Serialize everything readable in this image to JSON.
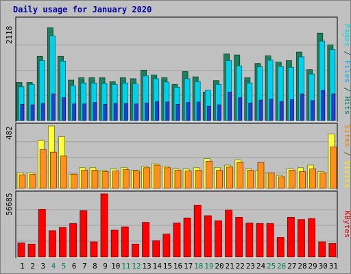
{
  "chart_data": {
    "type": "bar",
    "title": "Daily usage for January 2020",
    "categories": [
      "1",
      "2",
      "3",
      "4",
      "5",
      "6",
      "7",
      "8",
      "9",
      "10",
      "11",
      "12",
      "13",
      "14",
      "15",
      "16",
      "17",
      "18",
      "19",
      "20",
      "21",
      "22",
      "23",
      "24",
      "25",
      "26",
      "27",
      "28",
      "29",
      "30",
      "31"
    ],
    "weekend_days": [
      "4",
      "5",
      "11",
      "12",
      "18",
      "19",
      "25",
      "26"
    ],
    "panels": [
      {
        "id": "top",
        "ymax": 2118,
        "ymax_label": "2118",
        "right_label_parts": [
          {
            "text": "Pages",
            "color": "#00e0e0"
          },
          {
            "text": " / ",
            "color": "#006060"
          },
          {
            "text": "Files",
            "color": "#00b0f0"
          },
          {
            "text": " / ",
            "color": "#006060"
          },
          {
            "text": "Hits",
            "color": "#008060"
          }
        ],
        "series": [
          {
            "name": "Hits",
            "color": "#1a8060",
            "values": [
              800,
              800,
              1350,
              1950,
              1350,
              850,
              900,
              900,
              900,
              820,
              900,
              880,
              1060,
              960,
              900,
              760,
              1030,
              920,
              600,
              840,
              1400,
              1380,
              900,
              1200,
              1360,
              1230,
              1260,
              1440,
              1070,
              1840,
              1590
            ]
          },
          {
            "name": "Files",
            "color": "#00d0e8",
            "values": [
              710,
              760,
              1260,
              1780,
              1250,
              730,
              790,
              790,
              780,
              760,
              790,
              770,
              940,
              880,
              810,
              700,
              880,
              820,
              640,
              760,
              1260,
              1150,
              790,
              1130,
              1270,
              1140,
              1120,
              1340,
              980,
              1670,
              1490
            ]
          },
          {
            "name": "Pages",
            "color": "#2040d0",
            "values": [
              340,
              330,
              360,
              560,
              480,
              350,
              350,
              380,
              340,
              360,
              360,
              350,
              370,
              400,
              390,
              340,
              380,
              390,
              300,
              330,
              600,
              480,
              370,
              430,
              450,
              400,
              440,
              560,
              420,
              640,
              560
            ]
          }
        ]
      },
      {
        "id": "middle",
        "ymax": 482,
        "ymax_label": "482",
        "right_label_parts": [
          {
            "text": "Sites",
            "color": "#f08000"
          },
          {
            "text": " / ",
            "color": "#606000"
          },
          {
            "text": "Visits",
            "color": "#f0f000"
          }
        ],
        "series": [
          {
            "name": "Visits",
            "color": "#ffff40",
            "values": [
              120,
              120,
              370,
              482,
              400,
              110,
              160,
              160,
              140,
              150,
              160,
              140,
              170,
              190,
              170,
              150,
              150,
              160,
              230,
              160,
              180,
              220,
              150,
              140,
              120,
              100,
              150,
              160,
              180,
              130,
              420
            ]
          },
          {
            "name": "Sites",
            "color": "#ff9020",
            "values": [
              105,
              108,
              300,
              280,
              250,
              110,
              140,
              140,
              130,
              135,
              145,
              135,
              160,
              180,
              160,
              140,
              135,
              140,
              210,
              140,
              165,
              200,
              140,
              200,
              120,
              90,
              140,
              130,
              150,
              120,
              320
            ]
          }
        ]
      },
      {
        "id": "bottom",
        "ymax": 56685,
        "ymax_label": "56685",
        "right_label_parts": [
          {
            "text": "KBytes",
            "color": "#e00000"
          }
        ],
        "series": [
          {
            "name": "KBytes",
            "color": "#ff0000",
            "values": [
              12500,
              11500,
              42800,
              23500,
              26500,
              30000,
              41500,
              13500,
              56685,
              24000,
              27000,
              11500,
              31000,
              14500,
              20500,
              30500,
              35000,
              46500,
              37000,
              32500,
              42000,
              35500,
              30500,
              30000,
              30000,
              17500,
              35500,
              33500,
              34500,
              13500,
              12000
            ]
          }
        ]
      }
    ]
  }
}
